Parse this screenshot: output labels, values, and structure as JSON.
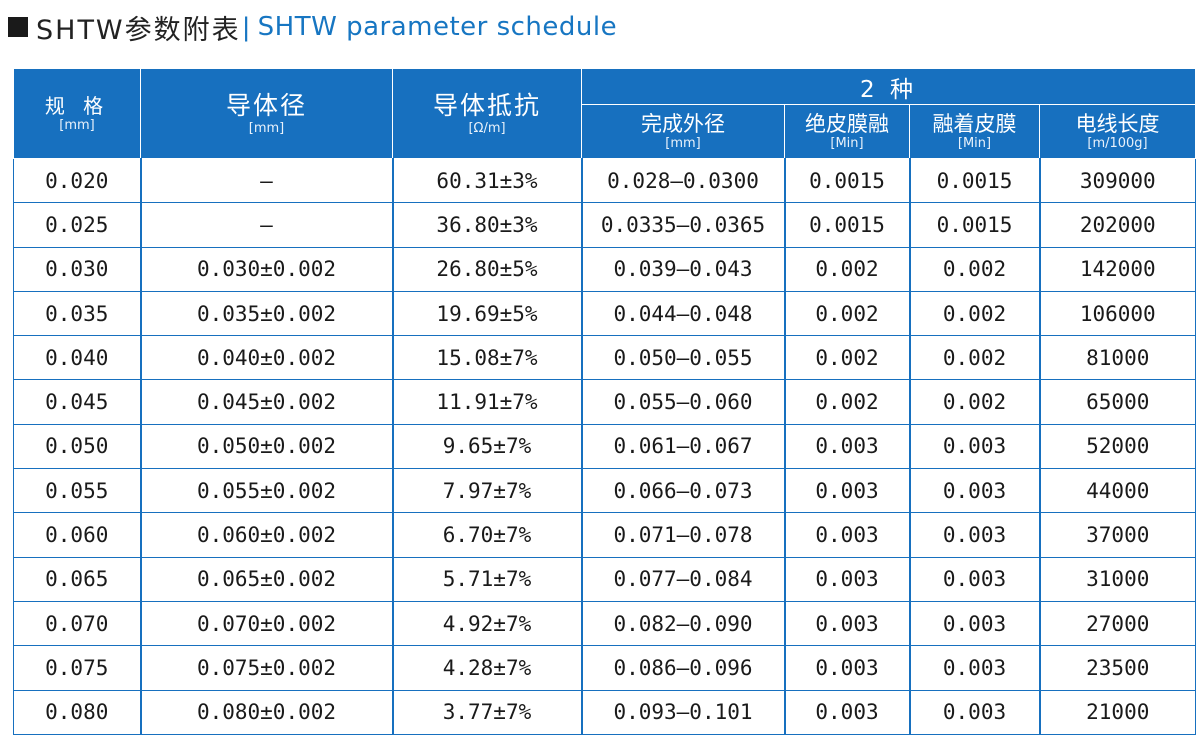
{
  "title": {
    "cn": "SHTW参数附表",
    "separator": "|",
    "en": "SHTW parameter schedule"
  },
  "header": {
    "group_label": "2 种",
    "columns": [
      {
        "label": "规 格",
        "unit": "[mm]"
      },
      {
        "label": "导体径",
        "unit": "[mm]"
      },
      {
        "label": "导体抵抗",
        "unit": "[Ω/m]"
      },
      {
        "label": "完成外径",
        "unit": "[mm]"
      },
      {
        "label": "绝皮膜融",
        "unit": "[Min]"
      },
      {
        "label": "融着皮膜",
        "unit": "[Min]"
      },
      {
        "label": "电线长度",
        "unit": "[m/100g]"
      }
    ]
  },
  "rows": [
    [
      "0.020",
      "—",
      "60.31±3%",
      "0.028—0.0300",
      "0.0015",
      "0.0015",
      "309000"
    ],
    [
      "0.025",
      "—",
      "36.80±3%",
      "0.0335—0.0365",
      "0.0015",
      "0.0015",
      "202000"
    ],
    [
      "0.030",
      "0.030±0.002",
      "26.80±5%",
      "0.039—0.043",
      "0.002",
      "0.002",
      "142000"
    ],
    [
      "0.035",
      "0.035±0.002",
      "19.69±5%",
      "0.044—0.048",
      "0.002",
      "0.002",
      "106000"
    ],
    [
      "0.040",
      "0.040±0.002",
      "15.08±7%",
      "0.050—0.055",
      "0.002",
      "0.002",
      "81000"
    ],
    [
      "0.045",
      "0.045±0.002",
      "11.91±7%",
      "0.055—0.060",
      "0.002",
      "0.002",
      "65000"
    ],
    [
      "0.050",
      "0.050±0.002",
      "9.65±7%",
      "0.061—0.067",
      "0.003",
      "0.003",
      "52000"
    ],
    [
      "0.055",
      "0.055±0.002",
      "7.97±7%",
      "0.066—0.073",
      "0.003",
      "0.003",
      "44000"
    ],
    [
      "0.060",
      "0.060±0.002",
      "6.70±7%",
      "0.071—0.078",
      "0.003",
      "0.003",
      "37000"
    ],
    [
      "0.065",
      "0.065±0.002",
      "5.71±7%",
      "0.077—0.084",
      "0.003",
      "0.003",
      "31000"
    ],
    [
      "0.070",
      "0.070±0.002",
      "4.92±7%",
      "0.082—0.090",
      "0.003",
      "0.003",
      "27000"
    ],
    [
      "0.075",
      "0.075±0.002",
      "4.28±7%",
      "0.086—0.096",
      "0.003",
      "0.003",
      "23500"
    ],
    [
      "0.080",
      "0.080±0.002",
      "3.77±7%",
      "0.093—0.101",
      "0.003",
      "0.003",
      "21000"
    ]
  ],
  "colors": {
    "header_bg": "#1770bf",
    "title_accent": "#1776c2",
    "grid_line": "#1770bf"
  }
}
